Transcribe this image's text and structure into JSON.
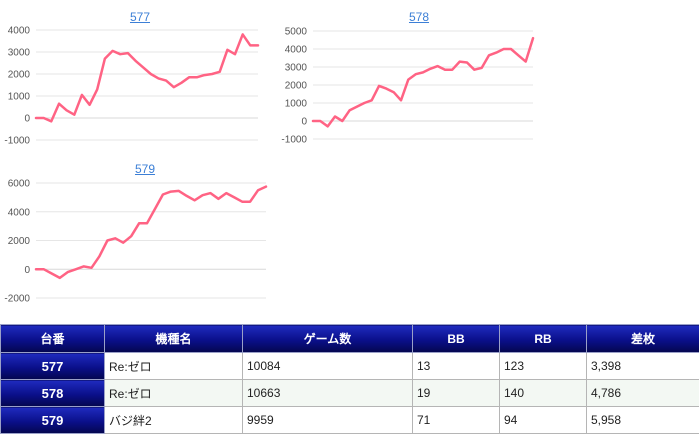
{
  "chart_data": [
    {
      "type": "line",
      "title": "577",
      "yticks": [
        -1000,
        0,
        1000,
        2000,
        3000,
        4000
      ],
      "ylim": [
        -1000,
        4000
      ],
      "series": [
        {
          "values": [
            0,
            0,
            -150,
            650,
            350,
            150,
            1050,
            600,
            1300,
            2700,
            3050,
            2900,
            2950,
            2600,
            2300,
            2000,
            1800,
            1700,
            1400,
            1600,
            1850,
            1850,
            1950,
            2000,
            2100,
            3100,
            2900,
            3800,
            3300,
            3300
          ]
        }
      ]
    },
    {
      "type": "line",
      "title": "578",
      "yticks": [
        -1000,
        0,
        1000,
        2000,
        3000,
        4000,
        5000
      ],
      "ylim": [
        -1000,
        5000
      ],
      "series": [
        {
          "values": [
            0,
            0,
            -300,
            250,
            0,
            600,
            800,
            1000,
            1150,
            1950,
            1800,
            1600,
            1150,
            2300,
            2600,
            2700,
            2900,
            3050,
            2850,
            2850,
            3300,
            3250,
            2850,
            2950,
            3650,
            3800,
            4000,
            4000,
            3650,
            3300,
            4600
          ]
        }
      ]
    },
    {
      "type": "line",
      "title": "579",
      "yticks": [
        -2000,
        0,
        2000,
        4000,
        6000
      ],
      "ylim": [
        -2000,
        6000
      ],
      "series": [
        {
          "values": [
            0,
            0,
            -300,
            -600,
            -200,
            0,
            200,
            100,
            900,
            2000,
            2150,
            1850,
            2300,
            3200,
            3200,
            4200,
            5200,
            5400,
            5450,
            5100,
            4800,
            5150,
            5300,
            4900,
            5300,
            5000,
            4700,
            4700,
            5500,
            5750
          ]
        }
      ]
    }
  ],
  "table": {
    "headers": [
      "台番",
      "機種名",
      "ゲーム数",
      "BB",
      "RB",
      "差枚"
    ],
    "rows": [
      {
        "num": "577",
        "name": "Re:ゼロ",
        "games": "10084",
        "bb": "13",
        "rb": "123",
        "diff": "3,398"
      },
      {
        "num": "578",
        "name": "Re:ゼロ",
        "games": "10663",
        "bb": "19",
        "rb": "140",
        "diff": "4,786"
      },
      {
        "num": "579",
        "name": "バジ絆2",
        "games": "9959",
        "bb": "71",
        "rb": "94",
        "diff": "5,958"
      }
    ]
  },
  "colors": {
    "line": "#ff6384",
    "header": "#0a0f8a"
  }
}
